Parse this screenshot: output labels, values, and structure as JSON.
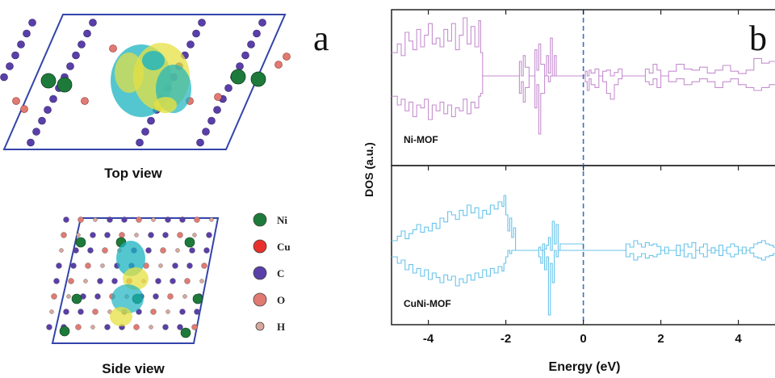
{
  "panel_a": {
    "letter": "a",
    "top_caption": "Top view",
    "side_caption": "Side view",
    "legend": [
      {
        "element": "Ni",
        "color": "#1e7a3a"
      },
      {
        "element": "Cu",
        "color": "#e8302a"
      },
      {
        "element": "C",
        "color": "#5a3fa8"
      },
      {
        "element": "O",
        "color": "#e07a72"
      },
      {
        "element": "H",
        "color": "#d9a89c"
      }
    ]
  },
  "chart_data": {
    "type": "line",
    "panel_letter": "b",
    "xlabel": "Energy (eV)",
    "ylabel": "DOS (a.u.)",
    "xlim": [
      -4.95,
      5.05
    ],
    "xticks": [
      "-4",
      "-2",
      "0",
      "2",
      "4"
    ],
    "fermi_level": 0,
    "grid": false,
    "series": [
      {
        "name": "Ni-MOF",
        "color": "#c58fcf",
        "spin_up": {
          "x": [
            -4.95,
            -4.8,
            -4.7,
            -4.6,
            -4.5,
            -4.4,
            -4.3,
            -4.2,
            -4.1,
            -4.0,
            -3.9,
            -3.8,
            -3.7,
            -3.6,
            -3.5,
            -3.4,
            -3.3,
            -3.2,
            -3.1,
            -3.0,
            -2.9,
            -2.8,
            -2.7,
            -2.65,
            -2.6,
            -1.7,
            -1.65,
            -1.6,
            -1.55,
            -1.5,
            -1.4,
            -1.3,
            -1.25,
            -1.2,
            -1.15,
            -1.1,
            -1.0,
            -0.95,
            -0.9,
            -0.85,
            -0.8,
            -0.75,
            -0.7,
            0.0,
            0.05,
            0.1,
            0.15,
            0.2,
            0.3,
            0.4,
            0.5,
            0.6,
            0.7,
            0.8,
            0.9,
            1.0,
            1.5,
            1.6,
            1.7,
            1.8,
            1.9,
            2.0,
            2.2,
            2.4,
            2.6,
            2.8,
            3.0,
            3.2,
            3.4,
            3.6,
            3.8,
            4.0,
            4.2,
            4.4,
            4.6,
            4.8,
            5.0
          ],
          "y": [
            0.4,
            0.55,
            0.35,
            0.75,
            0.6,
            0.45,
            0.8,
            0.5,
            0.7,
            0.9,
            0.55,
            0.65,
            0.5,
            0.8,
            0.6,
            0.9,
            0.45,
            0.7,
            1.0,
            0.55,
            0.85,
            0.5,
            0.95,
            0.4,
            0.0,
            0.0,
            0.25,
            0.0,
            0.35,
            0.15,
            0.0,
            0.0,
            0.45,
            0.1,
            0.55,
            0.2,
            0.0,
            0.35,
            0.05,
            0.65,
            0.0,
            0.35,
            0.0,
            0.0,
            0.08,
            0.0,
            0.1,
            0.05,
            0.12,
            0.0,
            0.08,
            0.1,
            0.0,
            0.06,
            0.12,
            0.0,
            0.0,
            0.12,
            0.05,
            0.2,
            0.1,
            0.0,
            0.08,
            0.2,
            0.12,
            0.1,
            0.15,
            0.05,
            0.1,
            0.18,
            0.08,
            0.04,
            0.1,
            0.3,
            0.22,
            0.25,
            0.18
          ]
        },
        "spin_down": {
          "x": [
            -4.95,
            -4.8,
            -4.7,
            -4.6,
            -4.5,
            -4.4,
            -4.3,
            -4.2,
            -4.1,
            -4.0,
            -3.9,
            -3.8,
            -3.7,
            -3.6,
            -3.5,
            -3.4,
            -3.3,
            -3.2,
            -3.1,
            -3.0,
            -2.9,
            -2.8,
            -2.7,
            -2.65,
            -2.6,
            -1.7,
            -1.65,
            -1.6,
            -1.55,
            -1.5,
            -1.4,
            -1.3,
            -1.25,
            -1.2,
            -1.15,
            -1.1,
            -1.0,
            -0.95,
            -0.9,
            -0.85,
            -0.8,
            -0.75,
            -0.7,
            0.0,
            0.05,
            0.1,
            0.15,
            0.2,
            0.3,
            0.4,
            0.5,
            0.6,
            0.7,
            0.8,
            0.9,
            1.0,
            1.5,
            1.6,
            1.7,
            1.8,
            1.9,
            2.0,
            2.2,
            2.4,
            2.6,
            2.8,
            3.0,
            3.2,
            3.4,
            3.6,
            3.8,
            4.0,
            4.2,
            4.4,
            4.6,
            4.8,
            5.0
          ],
          "y": [
            -0.35,
            -0.5,
            -0.4,
            -0.6,
            -0.45,
            -0.7,
            -0.5,
            -0.55,
            -0.4,
            -0.75,
            -0.5,
            -0.6,
            -0.45,
            -0.65,
            -0.5,
            -0.7,
            -0.55,
            -0.6,
            -0.4,
            -0.65,
            -0.45,
            -0.55,
            -0.35,
            -0.3,
            0.0,
            0.0,
            -0.3,
            -0.1,
            -0.45,
            -0.2,
            0.0,
            0.0,
            -0.55,
            -0.15,
            -1.0,
            -0.3,
            0.0,
            0.0,
            -0.1,
            0.0,
            0.0,
            0.0,
            0.0,
            0.0,
            -0.1,
            -0.25,
            -0.05,
            -0.15,
            -0.2,
            0.0,
            -0.1,
            -0.3,
            -0.4,
            -0.15,
            -0.05,
            0.0,
            0.0,
            -0.1,
            -0.15,
            -0.05,
            -0.2,
            0.0,
            -0.1,
            -0.05,
            -0.15,
            -0.1,
            -0.05,
            -0.1,
            -0.2,
            -0.1,
            -0.05,
            -0.15,
            -0.2,
            -0.25,
            -0.2,
            -0.15,
            -0.1
          ]
        }
      },
      {
        "name": "CuNi-MOF",
        "color": "#69c3ea",
        "spin_up": {
          "x": [
            -4.95,
            -4.8,
            -4.7,
            -4.6,
            -4.5,
            -4.4,
            -4.3,
            -4.2,
            -4.1,
            -4.0,
            -3.9,
            -3.8,
            -3.7,
            -3.6,
            -3.5,
            -3.4,
            -3.3,
            -3.2,
            -3.1,
            -3.0,
            -2.9,
            -2.8,
            -2.7,
            -2.6,
            -2.5,
            -2.4,
            -2.3,
            -2.2,
            -2.1,
            -2.05,
            -2.0,
            -1.95,
            -1.9,
            -1.85,
            -1.8,
            -1.75,
            -1.2,
            -1.15,
            -1.1,
            -1.05,
            -1.0,
            -0.95,
            -0.9,
            -0.85,
            -0.8,
            -0.75,
            -0.7,
            -0.65,
            -0.6,
            0.0,
            0.1,
            0.3,
            0.5,
            0.7,
            0.9,
            1.0,
            1.1,
            1.2,
            1.3,
            1.4,
            1.5,
            1.6,
            1.7,
            1.8,
            1.9,
            2.0,
            2.1,
            2.2,
            2.3,
            2.4,
            2.5,
            2.6,
            2.7,
            2.8,
            2.9,
            3.0,
            3.1,
            3.2,
            3.3,
            3.4,
            3.5,
            3.6,
            3.7,
            3.8,
            3.9,
            4.0,
            4.1,
            4.2,
            4.3,
            4.4,
            4.5,
            4.6,
            4.7,
            4.8,
            4.9,
            5.0
          ],
          "y": [
            0.15,
            0.22,
            0.3,
            0.18,
            0.26,
            0.32,
            0.4,
            0.28,
            0.36,
            0.3,
            0.42,
            0.34,
            0.5,
            0.44,
            0.6,
            0.55,
            0.48,
            0.62,
            0.54,
            0.7,
            0.58,
            0.66,
            0.5,
            0.62,
            0.56,
            0.7,
            0.64,
            0.75,
            0.68,
            0.85,
            0.55,
            0.3,
            0.5,
            0.2,
            0.35,
            0.0,
            0.0,
            0.05,
            0.0,
            0.1,
            0.02,
            0.08,
            0.2,
            0.0,
            0.45,
            0.1,
            0.4,
            0.0,
            0.1,
            0.0,
            0.0,
            0.0,
            0.0,
            0.0,
            0.0,
            0.0,
            0.1,
            0.05,
            0.15,
            0.1,
            0.05,
            0.12,
            0.08,
            0.1,
            0.06,
            0.0,
            0.05,
            0.0,
            0.0,
            0.08,
            0.0,
            0.1,
            0.05,
            0.12,
            0.0,
            0.05,
            0.1,
            0.0,
            0.04,
            0.0,
            0.08,
            0.0,
            0.05,
            0.1,
            0.06,
            0.0,
            0.05,
            0.0,
            0.04,
            0.1,
            0.12,
            0.15,
            0.1,
            0.08,
            0.05,
            0.12
          ]
        },
        "spin_down": {
          "x": [
            -4.95,
            -4.8,
            -4.7,
            -4.6,
            -4.5,
            -4.4,
            -4.3,
            -4.2,
            -4.1,
            -4.0,
            -3.9,
            -3.8,
            -3.7,
            -3.6,
            -3.5,
            -3.4,
            -3.3,
            -3.2,
            -3.1,
            -3.0,
            -2.9,
            -2.8,
            -2.7,
            -2.6,
            -2.5,
            -2.4,
            -2.3,
            -2.2,
            -2.1,
            -2.05,
            -2.0,
            -1.95,
            -1.9,
            -1.85,
            -1.8,
            -1.75,
            -1.2,
            -1.15,
            -1.1,
            -1.05,
            -1.0,
            -0.95,
            -0.9,
            -0.85,
            -0.8,
            -0.75,
            -0.7,
            -0.65,
            -0.6,
            0.0,
            0.1,
            0.3,
            0.5,
            0.7,
            0.9,
            1.0,
            1.1,
            1.2,
            1.3,
            1.4,
            1.5,
            1.6,
            1.7,
            1.8,
            1.9,
            2.0,
            2.1,
            2.2,
            2.3,
            2.4,
            2.5,
            2.6,
            2.7,
            2.8,
            2.9,
            3.0,
            3.1,
            3.2,
            3.3,
            3.4,
            3.5,
            3.6,
            3.7,
            3.8,
            3.9,
            4.0,
            4.1,
            4.2,
            4.3,
            4.4,
            4.5,
            4.6,
            4.7,
            4.8,
            4.9,
            5.0
          ],
          "y": [
            -0.1,
            -0.2,
            -0.15,
            -0.3,
            -0.22,
            -0.35,
            -0.28,
            -0.4,
            -0.3,
            -0.45,
            -0.35,
            -0.42,
            -0.5,
            -0.38,
            -0.46,
            -0.4,
            -0.55,
            -0.44,
            -0.5,
            -0.38,
            -0.46,
            -0.35,
            -0.42,
            -0.3,
            -0.4,
            -0.28,
            -0.35,
            -0.25,
            -0.32,
            -0.2,
            -0.1,
            0.0,
            -0.05,
            0.0,
            0.0,
            0.0,
            0.0,
            -0.1,
            -0.2,
            0.0,
            -0.3,
            -0.1,
            -1.0,
            -0.2,
            -0.5,
            0.0,
            -0.1,
            0.0,
            0.0,
            0.0,
            0.0,
            0.0,
            0.0,
            0.0,
            0.0,
            0.0,
            -0.1,
            -0.05,
            -0.15,
            -0.1,
            -0.05,
            -0.12,
            -0.08,
            -0.1,
            -0.06,
            0.0,
            -0.05,
            0.0,
            0.0,
            -0.08,
            0.0,
            -0.1,
            -0.05,
            -0.12,
            0.0,
            -0.05,
            -0.1,
            0.0,
            -0.04,
            0.0,
            -0.08,
            0.0,
            -0.05,
            -0.1,
            -0.06,
            0.0,
            -0.05,
            0.0,
            -0.04,
            -0.1,
            -0.12,
            -0.15,
            -0.1,
            -0.08,
            -0.05,
            -0.12
          ]
        }
      }
    ]
  }
}
